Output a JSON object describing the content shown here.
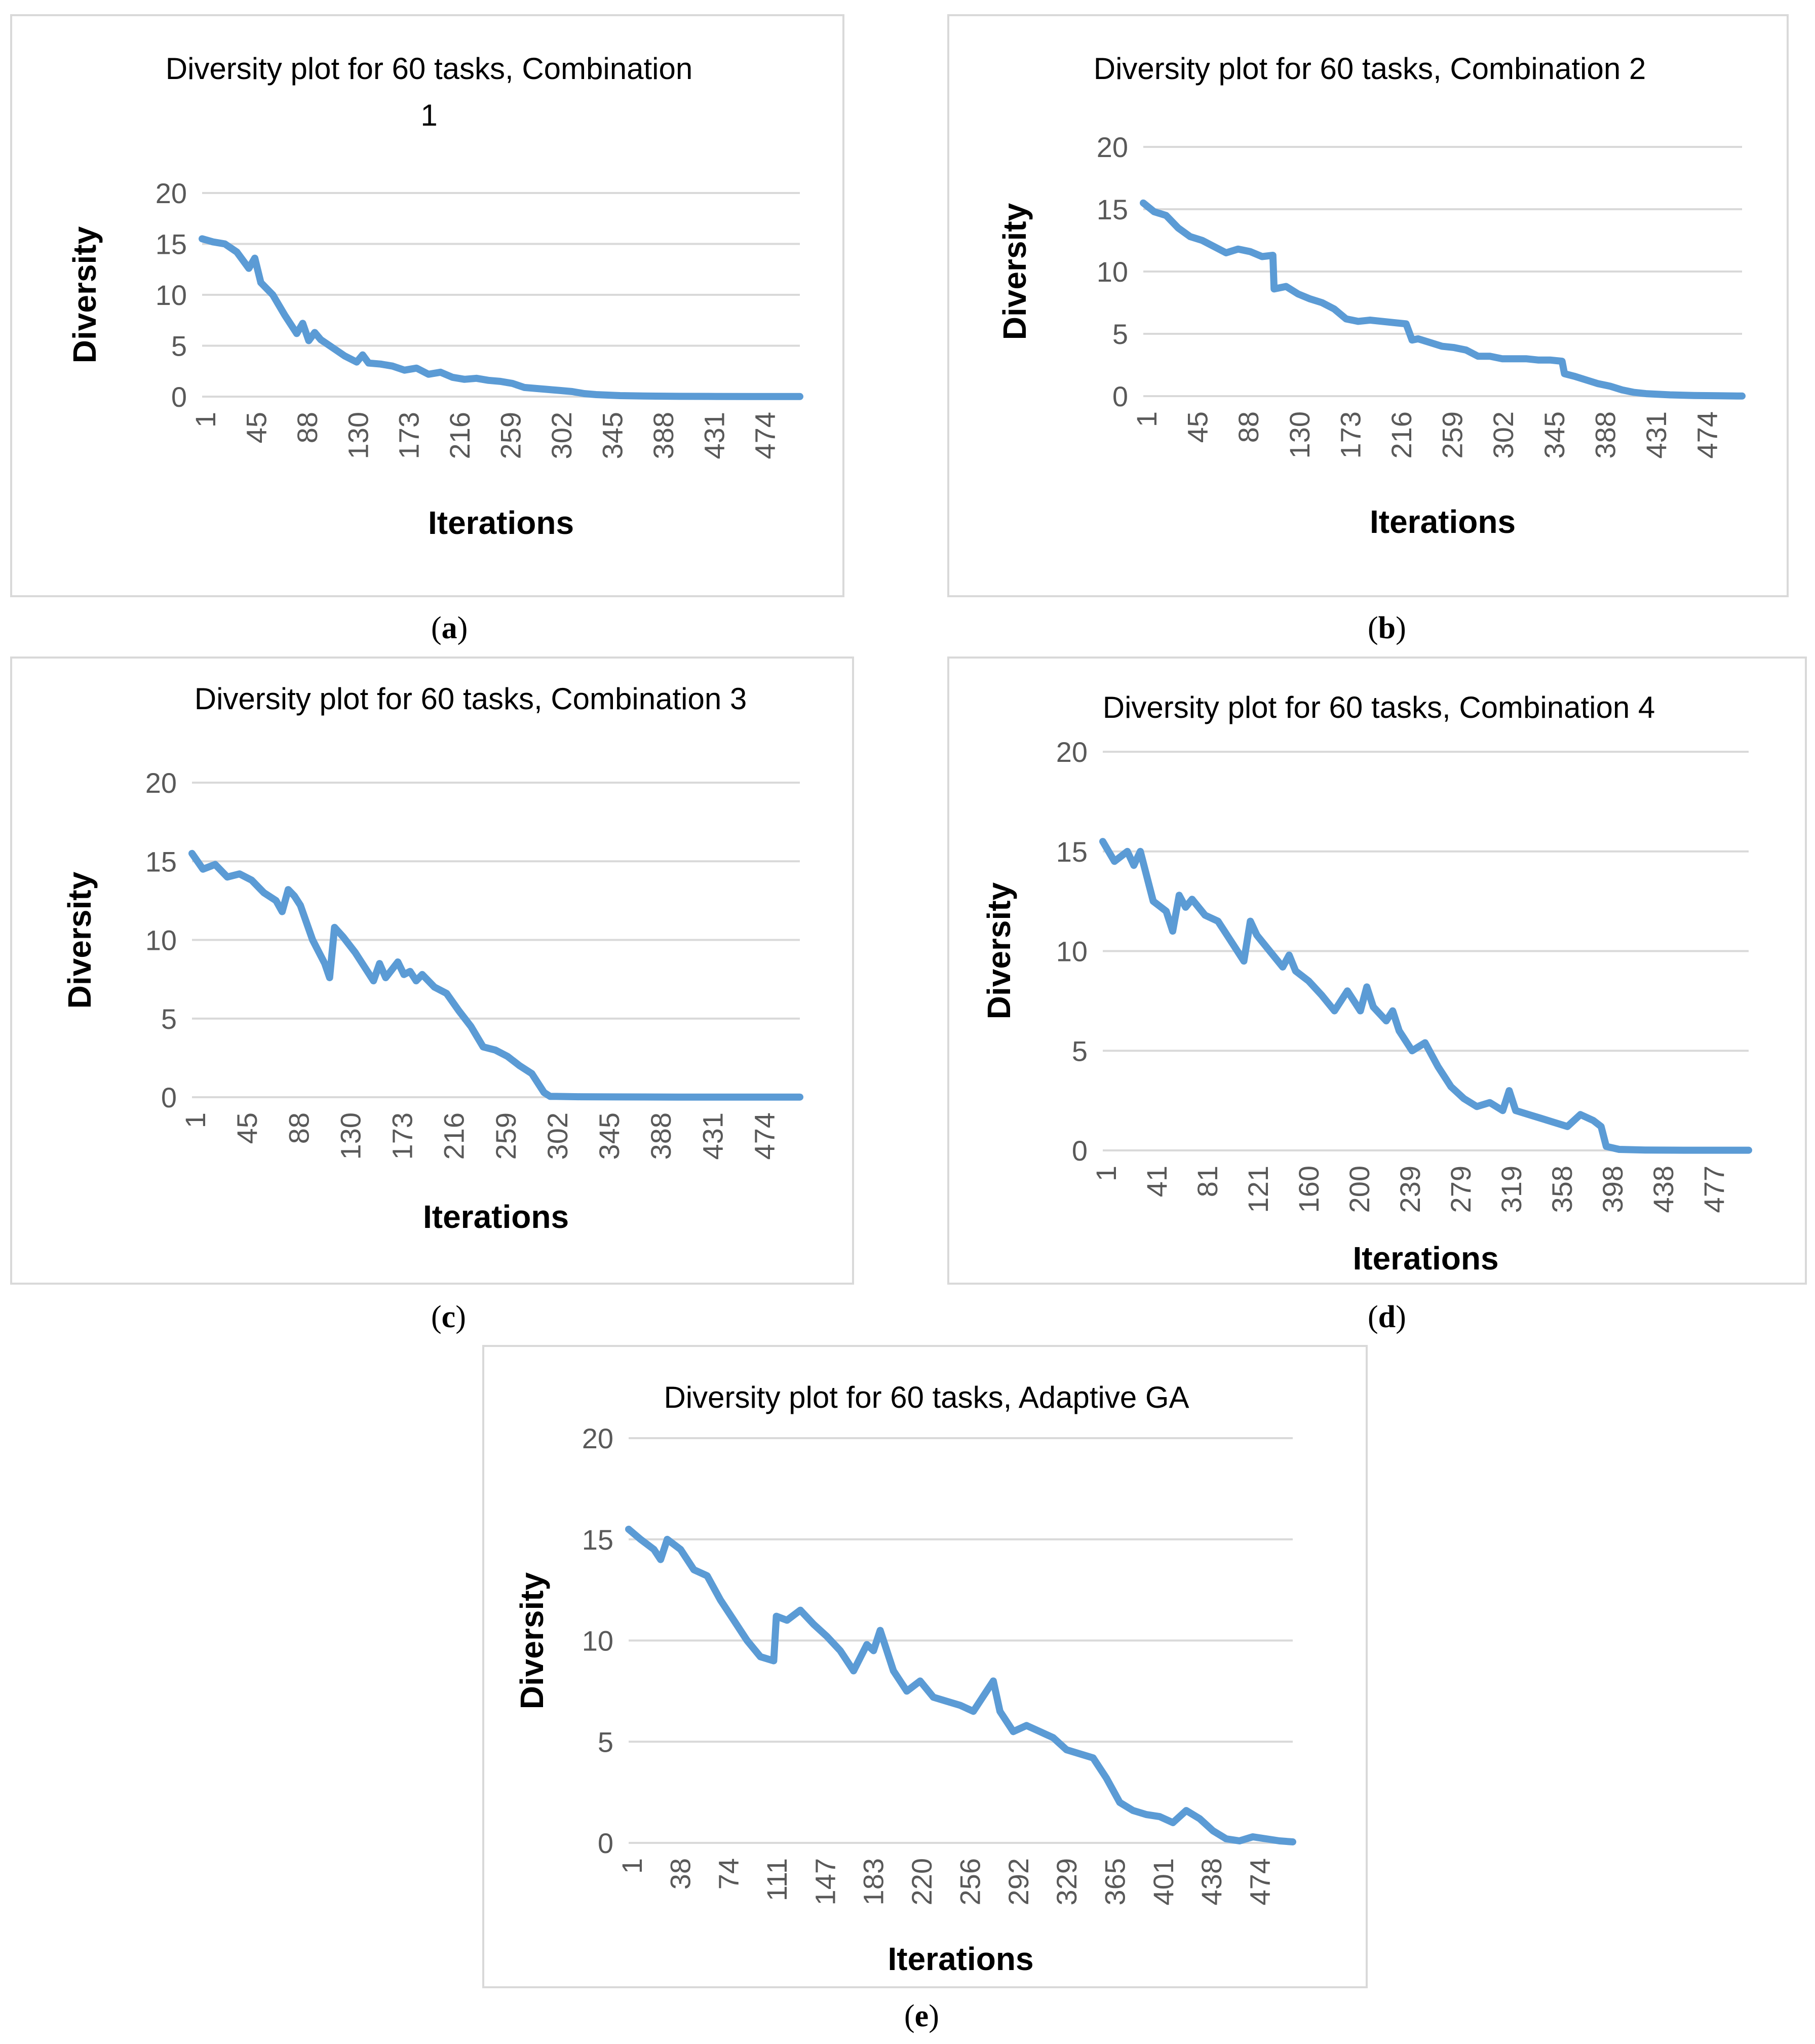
{
  "chart_data": [
    {
      "id": "a",
      "type": "line",
      "caption": "a",
      "title_lines": [
        "Diversity plot for 60 tasks, Combination",
        "1"
      ],
      "xlabel": "Iterations",
      "ylabel": "Diversity",
      "ylim": [
        0,
        20
      ],
      "yticks": [
        "0",
        "5",
        "10",
        "15",
        "20"
      ],
      "xlim": [
        1,
        500
      ],
      "xticks": [
        "1",
        "45",
        "88",
        "130",
        "173",
        "216",
        "259",
        "302",
        "345",
        "388",
        "431",
        "474"
      ],
      "series_color": "#5b9bd5",
      "series": [
        {
          "name": "Diversity",
          "x": [
            1,
            10,
            20,
            30,
            40,
            45,
            50,
            60,
            70,
            80,
            85,
            90,
            95,
            100,
            110,
            120,
            130,
            135,
            140,
            150,
            160,
            170,
            180,
            190,
            200,
            210,
            220,
            230,
            240,
            250,
            260,
            270,
            280,
            290,
            300,
            310,
            320,
            330,
            340,
            350,
            360,
            370,
            380,
            400,
            430,
            460,
            480,
            500
          ],
          "y": [
            15.5,
            15.2,
            15.0,
            14.2,
            12.6,
            13.6,
            11.2,
            10.0,
            8.0,
            6.2,
            7.2,
            5.5,
            6.3,
            5.6,
            4.8,
            4.0,
            3.4,
            4.1,
            3.3,
            3.2,
            3.0,
            2.6,
            2.8,
            2.2,
            2.4,
            1.9,
            1.7,
            1.8,
            1.6,
            1.5,
            1.3,
            0.9,
            0.8,
            0.7,
            0.6,
            0.5,
            0.3,
            0.2,
            0.15,
            0.1,
            0.08,
            0.06,
            0.05,
            0.03,
            0.02,
            0.01,
            0.01,
            0.01
          ]
        }
      ]
    },
    {
      "id": "b",
      "type": "line",
      "caption": "b",
      "title_lines": [
        "Diversity plot for 60 tasks, Combination 2"
      ],
      "xlabel": "Iterations",
      "ylabel": "Diversity",
      "ylim": [
        0,
        20
      ],
      "yticks": [
        "0",
        "5",
        "10",
        "15",
        "20"
      ],
      "xlim": [
        1,
        500
      ],
      "xticks": [
        "1",
        "45",
        "88",
        "130",
        "173",
        "216",
        "259",
        "302",
        "345",
        "388",
        "431",
        "474"
      ],
      "series_color": "#5b9bd5",
      "series": [
        {
          "name": "Diversity",
          "x": [
            1,
            10,
            20,
            30,
            40,
            50,
            60,
            70,
            80,
            90,
            100,
            109,
            110,
            120,
            130,
            140,
            150,
            160,
            170,
            180,
            190,
            200,
            210,
            220,
            225,
            230,
            240,
            250,
            260,
            270,
            280,
            290,
            300,
            310,
            320,
            330,
            340,
            350,
            352,
            360,
            370,
            380,
            390,
            400,
            410,
            420,
            440,
            460,
            480,
            500
          ],
          "y": [
            15.5,
            14.8,
            14.5,
            13.5,
            12.8,
            12.5,
            12.0,
            11.5,
            11.8,
            11.6,
            11.2,
            11.3,
            8.6,
            8.8,
            8.2,
            7.8,
            7.5,
            7.0,
            6.2,
            6.0,
            6.1,
            6.0,
            5.9,
            5.8,
            4.5,
            4.6,
            4.3,
            4.0,
            3.9,
            3.7,
            3.2,
            3.2,
            3.0,
            3.0,
            3.0,
            2.9,
            2.9,
            2.8,
            1.8,
            1.6,
            1.3,
            1.0,
            0.8,
            0.5,
            0.3,
            0.2,
            0.1,
            0.05,
            0.03,
            0.01
          ]
        }
      ]
    },
    {
      "id": "c",
      "type": "line",
      "caption": "c",
      "title_lines": [
        "Diversity plot for 60 tasks, Combination 3"
      ],
      "xlabel": "Iterations",
      "ylabel": "Diversity",
      "ylim": [
        0,
        20
      ],
      "yticks": [
        "0",
        "5",
        "10",
        "15",
        "20"
      ],
      "xlim": [
        1,
        500
      ],
      "xticks": [
        "1",
        "45",
        "88",
        "130",
        "173",
        "216",
        "259",
        "302",
        "345",
        "388",
        "431",
        "474"
      ],
      "series_color": "#5b9bd5",
      "series": [
        {
          "name": "Diversity",
          "x": [
            1,
            10,
            20,
            30,
            40,
            50,
            60,
            70,
            75,
            80,
            85,
            90,
            100,
            110,
            114,
            118,
            125,
            135,
            145,
            150,
            155,
            160,
            170,
            175,
            180,
            185,
            190,
            200,
            210,
            220,
            230,
            240,
            250,
            260,
            270,
            280,
            290,
            295,
            300,
            320,
            350,
            400,
            450,
            500
          ],
          "y": [
            15.5,
            14.5,
            14.8,
            14.0,
            14.2,
            13.8,
            13.0,
            12.5,
            11.8,
            13.2,
            12.8,
            12.2,
            10.0,
            8.5,
            7.6,
            10.8,
            10.2,
            9.2,
            8.0,
            7.4,
            8.5,
            7.6,
            8.6,
            7.8,
            8.0,
            7.4,
            7.8,
            7.0,
            6.6,
            5.5,
            4.5,
            3.2,
            3.0,
            2.6,
            2.0,
            1.5,
            0.3,
            0.05,
            0.05,
            0.03,
            0.02,
            0.01,
            0.01,
            0.01
          ]
        }
      ]
    },
    {
      "id": "d",
      "type": "line",
      "caption": "d",
      "title_lines": [
        "Diversity plot for 60 tasks, Combination 4"
      ],
      "xlabel": "Iterations",
      "ylabel": "Diversity",
      "ylim": [
        0,
        20
      ],
      "yticks": [
        "0",
        "5",
        "10",
        "15",
        "20"
      ],
      "xlim": [
        1,
        500
      ],
      "xticks": [
        "1",
        "41",
        "81",
        "121",
        "160",
        "200",
        "239",
        "279",
        "319",
        "358",
        "398",
        "438",
        "477"
      ],
      "series_color": "#5b9bd5",
      "series": [
        {
          "name": "Diversity",
          "x": [
            1,
            10,
            20,
            25,
            30,
            40,
            50,
            55,
            60,
            65,
            70,
            80,
            90,
            100,
            110,
            115,
            120,
            130,
            140,
            145,
            150,
            160,
            170,
            180,
            190,
            200,
            205,
            210,
            220,
            225,
            230,
            240,
            250,
            260,
            270,
            280,
            290,
            300,
            310,
            315,
            320,
            330,
            340,
            350,
            360,
            370,
            380,
            386,
            390,
            400,
            420,
            450,
            500
          ],
          "y": [
            15.5,
            14.5,
            15.0,
            14.3,
            15.0,
            12.5,
            12.0,
            11.0,
            12.8,
            12.2,
            12.6,
            11.8,
            11.5,
            10.5,
            9.5,
            11.5,
            10.8,
            10.0,
            9.2,
            9.8,
            9.0,
            8.5,
            7.8,
            7.0,
            8.0,
            7.0,
            8.2,
            7.2,
            6.5,
            7.0,
            6.0,
            5.0,
            5.4,
            4.2,
            3.2,
            2.6,
            2.2,
            2.4,
            2.0,
            3.0,
            2.0,
            1.8,
            1.6,
            1.4,
            1.2,
            1.8,
            1.5,
            1.2,
            0.2,
            0.05,
            0.02,
            0.01,
            0.01
          ]
        }
      ]
    },
    {
      "id": "e",
      "type": "line",
      "caption": "e",
      "title_lines": [
        "Diversity plot for 60 tasks, Adaptive GA"
      ],
      "xlabel": "Iterations",
      "ylabel": "Diversity",
      "ylim": [
        0,
        20
      ],
      "yticks": [
        "0",
        "5",
        "10",
        "15",
        "20"
      ],
      "xlim": [
        1,
        500
      ],
      "xticks": [
        "1",
        "38",
        "74",
        "111",
        "147",
        "183",
        "220",
        "256",
        "292",
        "329",
        "365",
        "401",
        "438",
        "474"
      ],
      "series_color": "#5b9bd5",
      "series": [
        {
          "name": "Diversity",
          "x": [
            1,
            10,
            20,
            25,
            30,
            40,
            50,
            60,
            70,
            80,
            90,
            100,
            110,
            112,
            120,
            130,
            140,
            150,
            160,
            170,
            180,
            185,
            190,
            200,
            210,
            220,
            230,
            240,
            250,
            260,
            270,
            275,
            280,
            290,
            300,
            310,
            320,
            330,
            340,
            350,
            360,
            370,
            380,
            390,
            400,
            410,
            420,
            430,
            440,
            450,
            460,
            470,
            480,
            490,
            500
          ],
          "y": [
            15.5,
            15.0,
            14.5,
            14.0,
            15.0,
            14.5,
            13.5,
            13.2,
            12.0,
            11.0,
            10.0,
            9.2,
            9.0,
            11.2,
            11.0,
            11.5,
            10.8,
            10.2,
            9.5,
            8.5,
            9.8,
            9.5,
            10.5,
            8.5,
            7.5,
            8.0,
            7.2,
            7.0,
            6.8,
            6.5,
            7.5,
            8.0,
            6.5,
            5.5,
            5.8,
            5.5,
            5.2,
            4.6,
            4.4,
            4.2,
            3.2,
            2.0,
            1.6,
            1.4,
            1.3,
            1.0,
            1.6,
            1.2,
            0.6,
            0.2,
            0.1,
            0.3,
            0.2,
            0.1,
            0.05
          ]
        }
      ]
    }
  ]
}
